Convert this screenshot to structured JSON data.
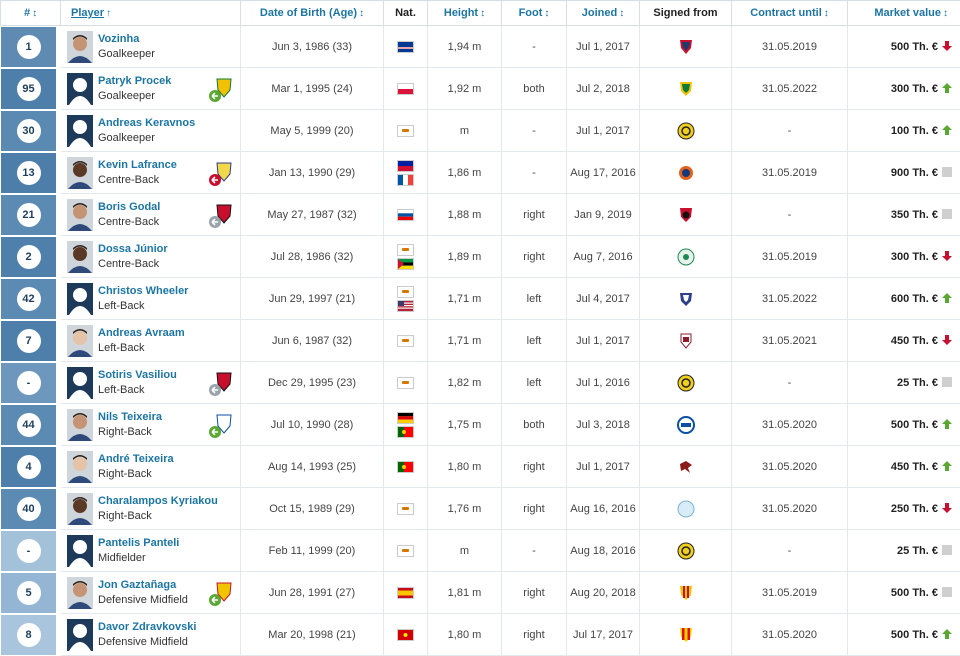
{
  "headers": {
    "num": "#",
    "player": "Player",
    "dob": "Date of Birth (Age)",
    "nat": "Nat.",
    "height": "Height",
    "foot": "Foot",
    "joined": "Joined",
    "signed": "Signed from",
    "contract": "Contract until",
    "market": "Market value"
  },
  "colors": {
    "accent": "#1d75a3",
    "header_col": "#3777a4",
    "up": "#5aa832",
    "down": "#c8102e",
    "neutral": "#cfcfcf"
  },
  "rows": [
    {
      "num": "1",
      "name": "Vozinha",
      "pos": "Goalkeeper",
      "dob": "Jun 3, 1986 (33)",
      "flags": [
        "cv"
      ],
      "height": "1,94 m",
      "foot": "-",
      "joined": "Jul 1, 2017",
      "contract": "31.05.2019",
      "mv": "500 Th. €",
      "trend": "down",
      "photo": "photo",
      "badge": "",
      "club": "red-shield",
      "shade": "#5f8bb3"
    },
    {
      "num": "95",
      "name": "Patryk Procek",
      "pos": "Goalkeeper",
      "dob": "Mar 1, 1995 (24)",
      "flags": [
        "pl"
      ],
      "height": "1,92 m",
      "foot": "both",
      "joined": "Jul 2, 2018",
      "contract": "31.05.2022",
      "mv": "300 Th. €",
      "trend": "up",
      "photo": "blank",
      "badge": "loan-green",
      "club": "green-shield",
      "shade": "#4e7fab"
    },
    {
      "num": "30",
      "name": "Andreas Keravnos",
      "pos": "Goalkeeper",
      "dob": "May 5, 1999 (20)",
      "flags": [
        "cy"
      ],
      "height": "m",
      "foot": "-",
      "joined": "Jul 1, 2017",
      "contract": "-",
      "mv": "100 Th. €",
      "trend": "up",
      "photo": "blank",
      "badge": "",
      "club": "yellow-ball",
      "shade": "#5a89b1"
    },
    {
      "num": "13",
      "name": "Kevin Lafrance",
      "pos": "Centre-Back",
      "dob": "Jan 13, 1990 (29)",
      "flags": [
        "ht",
        "fr"
      ],
      "height": "1,86 m",
      "foot": "-",
      "joined": "Aug 17, 2016",
      "contract": "31.05.2019",
      "mv": "900 Th. €",
      "trend": "neutral",
      "photo": "photo-dark",
      "badge": "loan-red",
      "club": "orange-round",
      "shade": "#4d7eaa"
    },
    {
      "num": "21",
      "name": "Boris Godal",
      "pos": "Centre-Back",
      "dob": "May 27, 1987 (32)",
      "flags": [
        "si"
      ],
      "height": "1,88 m",
      "foot": "right",
      "joined": "Jan 9, 2019",
      "contract": "-",
      "mv": "350 Th. €",
      "trend": "neutral",
      "photo": "photo",
      "badge": "loan-grey-red",
      "club": "red-black",
      "shade": "#5b8ab2"
    },
    {
      "num": "2",
      "name": "Dossa Júnior",
      "pos": "Centre-Back",
      "dob": "Jul 28, 1986 (32)",
      "flags": [
        "cy",
        "mz"
      ],
      "height": "1,89 m",
      "foot": "right",
      "joined": "Aug 7, 2016",
      "contract": "31.05.2019",
      "mv": "300 Th. €",
      "trend": "down",
      "photo": "photo-dark",
      "badge": "",
      "club": "green-white",
      "shade": "#4f80ab"
    },
    {
      "num": "42",
      "name": "Christos Wheeler",
      "pos": "Left-Back",
      "dob": "Jun 29, 1997 (21)",
      "flags": [
        "cy",
        "us"
      ],
      "height": "1,71 m",
      "foot": "left",
      "joined": "Jul 4, 2017",
      "contract": "31.05.2022",
      "mv": "600 Th. €",
      "trend": "up",
      "photo": "blank",
      "badge": "",
      "club": "blue-shield",
      "shade": "#5b8ab2"
    },
    {
      "num": "7",
      "name": "Andreas Avraam",
      "pos": "Left-Back",
      "dob": "Jun 6, 1987 (32)",
      "flags": [
        "cy"
      ],
      "height": "1,71 m",
      "foot": "left",
      "joined": "Jul 1, 2017",
      "contract": "31.05.2021",
      "mv": "450 Th. €",
      "trend": "down",
      "photo": "photo-light",
      "badge": "",
      "club": "maroon-shield",
      "shade": "#4e7fab"
    },
    {
      "num": "-",
      "name": "Sotiris Vasiliou",
      "pos": "Left-Back",
      "dob": "Dec 29, 1995 (23)",
      "flags": [
        "cy"
      ],
      "height": "1,82 m",
      "foot": "left",
      "joined": "Jul 1, 2016",
      "contract": "-",
      "mv": "25 Th. €",
      "trend": "neutral",
      "photo": "blank",
      "badge": "loan-grey-red",
      "club": "yellow-ball",
      "shade": "#6d97bd"
    },
    {
      "num": "44",
      "name": "Nils Teixeira",
      "pos": "Right-Back",
      "dob": "Jul 10, 1990 (28)",
      "flags": [
        "de",
        "pt"
      ],
      "height": "1,75 m",
      "foot": "both",
      "joined": "Jul 3, 2018",
      "contract": "31.05.2020",
      "mv": "500 Th. €",
      "trend": "up",
      "photo": "photo",
      "badge": "loan-green-blue",
      "club": "blue-round",
      "shade": "#5b8ab2"
    },
    {
      "num": "4",
      "name": "André Teixeira",
      "pos": "Right-Back",
      "dob": "Aug 14, 1993 (25)",
      "flags": [
        "pt"
      ],
      "height": "1,80 m",
      "foot": "right",
      "joined": "Jul 1, 2017",
      "contract": "31.05.2020",
      "mv": "450 Th. €",
      "trend": "up",
      "photo": "photo-light",
      "badge": "",
      "club": "bird",
      "shade": "#4e7fab"
    },
    {
      "num": "40",
      "name": "Charalampos Kyriakou",
      "pos": "Right-Back",
      "dob": "Oct 15, 1989 (29)",
      "flags": [
        "cy"
      ],
      "height": "1,76 m",
      "foot": "right",
      "joined": "Aug 16, 2016",
      "contract": "31.05.2020",
      "mv": "250 Th. €",
      "trend": "down",
      "photo": "photo-dark",
      "badge": "",
      "club": "light-blue",
      "shade": "#5b8ab2"
    },
    {
      "num": "-",
      "name": "Pantelis Panteli",
      "pos": "Midfielder",
      "dob": "Feb 11, 1999 (20)",
      "flags": [
        "cy"
      ],
      "height": "m",
      "foot": "-",
      "joined": "Aug 18, 2016",
      "contract": "-",
      "mv": "25 Th. €",
      "trend": "neutral",
      "photo": "blank",
      "badge": "",
      "club": "yellow-ball",
      "shade": "#a4c1da"
    },
    {
      "num": "5",
      "name": "Jon Gaztañaga",
      "pos": "Defensive Midfield",
      "dob": "Jun 28, 1991 (27)",
      "flags": [
        "es"
      ],
      "height": "1,81 m",
      "foot": "right",
      "joined": "Aug 20, 2018",
      "contract": "31.05.2019",
      "mv": "500 Th. €",
      "trend": "neutral",
      "photo": "photo",
      "badge": "loan-green-yellow",
      "club": "yellow-stripe",
      "shade": "#94b6d4"
    },
    {
      "num": "8",
      "name": "Davor Zdravkovski",
      "pos": "Defensive Midfield",
      "dob": "Mar 20, 1998 (21)",
      "flags": [
        "mk"
      ],
      "height": "1,80 m",
      "foot": "right",
      "joined": "Jul 17, 2017",
      "contract": "31.05.2020",
      "mv": "500 Th. €",
      "trend": "up",
      "photo": "blank",
      "badge": "",
      "club": "red-yellow",
      "shade": "#a9c5de"
    }
  ]
}
